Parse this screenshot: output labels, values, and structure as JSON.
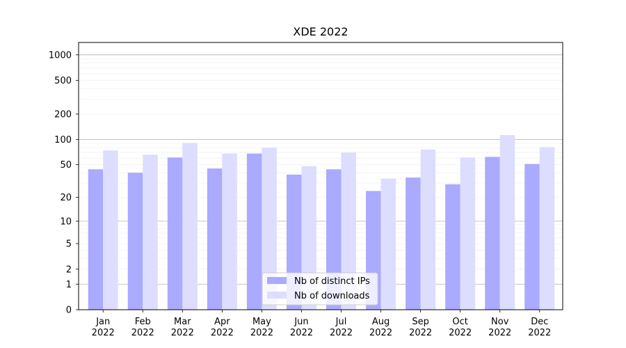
{
  "chart_data": {
    "type": "bar",
    "title": "XDE 2022",
    "xlabel": "",
    "ylabel": "",
    "yscale": "log(1+y)",
    "ylim": [
      0,
      1400
    ],
    "yticks": [
      0,
      1,
      2,
      5,
      10,
      20,
      50,
      100,
      200,
      500,
      1000
    ],
    "categories": [
      "Jan\n2022",
      "Feb\n2022",
      "Mar\n2022",
      "Apr\n2022",
      "May\n2022",
      "Jun\n2022",
      "Jul\n2022",
      "Aug\n2022",
      "Sep\n2022",
      "Oct\n2022",
      "Nov\n2022",
      "Dec\n2022"
    ],
    "series": [
      {
        "name": "Nb of distinct IPs",
        "color": "#aaaaff",
        "values": [
          44,
          40,
          61,
          45,
          68,
          38,
          44,
          24,
          35,
          29,
          62,
          51
        ]
      },
      {
        "name": "Nb of downloads",
        "color": "#ddddff",
        "values": [
          74,
          66,
          91,
          68,
          80,
          48,
          70,
          34,
          76,
          61,
          113,
          81
        ]
      }
    ],
    "grid": "y (major and minor)",
    "legend_position": "lower-center"
  }
}
